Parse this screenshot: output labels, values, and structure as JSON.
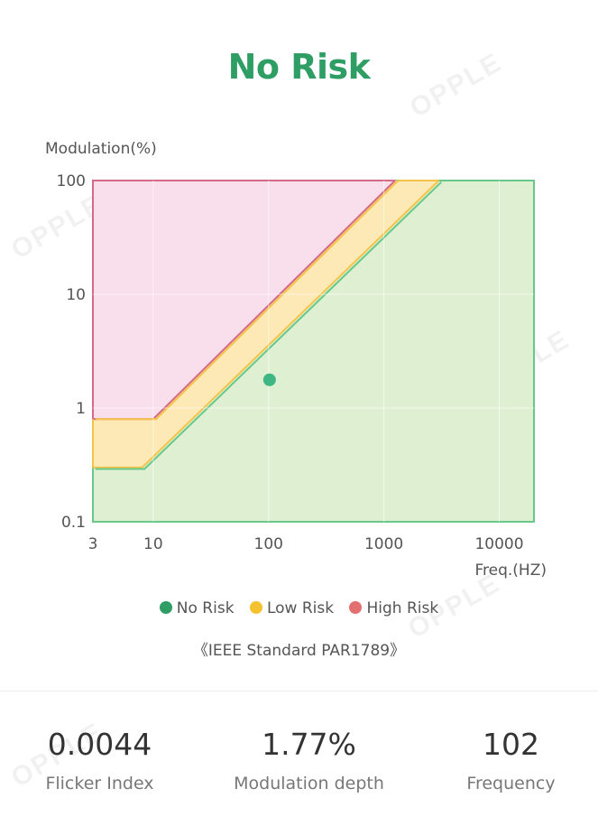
{
  "header": {
    "title": "No Risk"
  },
  "watermark": "OPPLE",
  "legend": [
    {
      "label": "No Risk",
      "color": "#2e9e64"
    },
    {
      "label": "Low Risk",
      "color": "#f5c22f"
    },
    {
      "label": "High Risk",
      "color": "#e36f6f"
    }
  ],
  "standard": "《IEEE Standard PAR1789》",
  "metrics": [
    {
      "value": "0.0044",
      "label": "Flicker Index"
    },
    {
      "value": "1.77%",
      "label": "Modulation depth"
    },
    {
      "value": "102",
      "label": "Frequency"
    }
  ],
  "chart_data": {
    "type": "scatter",
    "title": "",
    "xlabel": "Freq.(HZ)",
    "ylabel": "Modulation(%)",
    "x_scale": "log",
    "y_scale": "log",
    "xlim": [
      3,
      20000
    ],
    "ylim": [
      0.1,
      100
    ],
    "x_ticks": [
      3,
      10,
      100,
      1000,
      10000
    ],
    "y_ticks": [
      0.1,
      1,
      10,
      100
    ],
    "grid": true,
    "regions": [
      {
        "name": "High Risk",
        "color": "#f9dfeb",
        "stroke": "#d46a86"
      },
      {
        "name": "Low Risk",
        "color": "#fde9b6",
        "stroke": "#f4c34a"
      },
      {
        "name": "No Risk",
        "color": "#dff0d2",
        "stroke": "#67c88a"
      }
    ],
    "boundaries": {
      "low_risk_boundary": [
        [
          3,
          0.8
        ],
        [
          10,
          0.8
        ],
        [
          1250,
          100
        ]
      ],
      "no_risk_boundary": [
        [
          3,
          0.3
        ],
        [
          8,
          0.3
        ],
        [
          3000,
          100
        ]
      ]
    },
    "points": [
      {
        "x": 102,
        "y": 1.77,
        "color": "#3fb784"
      }
    ]
  }
}
